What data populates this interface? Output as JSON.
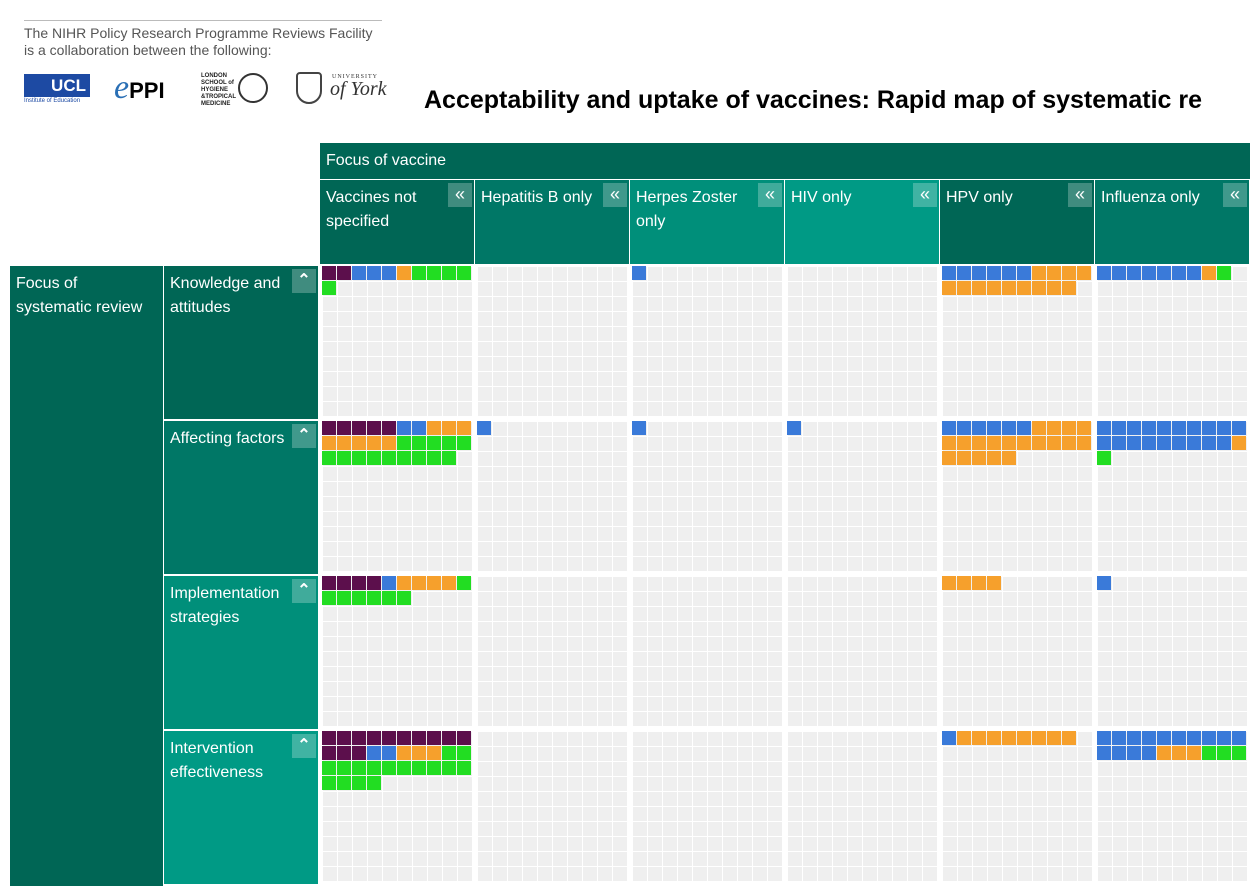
{
  "header": {
    "intro_line1": "The NIHR Policy Research Programme Reviews Facility",
    "intro_line2": "is a collaboration between the following:",
    "title": "Acceptability and uptake of vaccines: Rapid map of systematic re"
  },
  "logos": {
    "ucl": "UCL",
    "ucl_sub": "Institute of Education",
    "eppi_e": "e",
    "eppi_text": "PPI",
    "lshtm": "LONDON SCHOOL of HYGIENE &TROPICAL MEDICINE",
    "york_top": "UNIVERSITY",
    "york_main": "of York"
  },
  "col_group_label": "Focus of vaccine",
  "row_group_label": "Focus of systematic review",
  "colors": {
    "purple": "#5c0f4c",
    "blue": "#3a7ad9",
    "orange": "#f6a02c",
    "green": "#22dd22",
    "header_dark": "#006655",
    "header_mid": "#007766",
    "header_light": "#008f7a"
  },
  "columns": [
    {
      "label": "Vaccines not specified",
      "bg": "#006655"
    },
    {
      "label": "Hepatitis B only",
      "bg": "#007766"
    },
    {
      "label": "Herpes Zoster only",
      "bg": "#008f7a"
    },
    {
      "label": "HIV only",
      "bg": "#009a85"
    },
    {
      "label": "HPV only",
      "bg": "#006655"
    },
    {
      "label": "Influenza only",
      "bg": "#007766"
    }
  ],
  "rows": [
    {
      "label": "Knowledge and attitudes",
      "bg": "#006655"
    },
    {
      "label": "Affecting factors",
      "bg": "#007766"
    },
    {
      "label": "Implementation strategies",
      "bg": "#008f7a"
    },
    {
      "label": "Intervention effectiveness",
      "bg": "#009a85"
    }
  ],
  "icons": {
    "collapse_col": "double-chevron-left-icon",
    "collapse_row": "double-chevron-up-icon"
  },
  "cells": [
    [
      [
        2,
        3,
        1,
        5
      ],
      [
        0,
        0,
        0,
        0
      ],
      [
        0,
        1,
        0,
        0
      ],
      [
        0,
        0,
        0,
        0
      ],
      [
        0,
        6,
        13,
        0
      ],
      [
        0,
        7,
        1,
        1
      ]
    ],
    [
      [
        5,
        2,
        8,
        14
      ],
      [
        0,
        1,
        0,
        0
      ],
      [
        0,
        1,
        0,
        0
      ],
      [
        0,
        1,
        0,
        0
      ],
      [
        0,
        6,
        19,
        0
      ],
      [
        0,
        19,
        1,
        1
      ]
    ],
    [
      [
        4,
        1,
        4,
        7
      ],
      [
        0,
        0,
        0,
        0
      ],
      [
        0,
        0,
        0,
        0
      ],
      [
        0,
        0,
        0,
        0
      ],
      [
        0,
        0,
        4,
        0
      ],
      [
        0,
        1,
        0,
        0
      ]
    ],
    [
      [
        13,
        2,
        3,
        16
      ],
      [
        0,
        0,
        0,
        0
      ],
      [
        0,
        0,
        0,
        0
      ],
      [
        0,
        0,
        0,
        0
      ],
      [
        0,
        1,
        8,
        0
      ],
      [
        0,
        14,
        3,
        3
      ]
    ]
  ]
}
